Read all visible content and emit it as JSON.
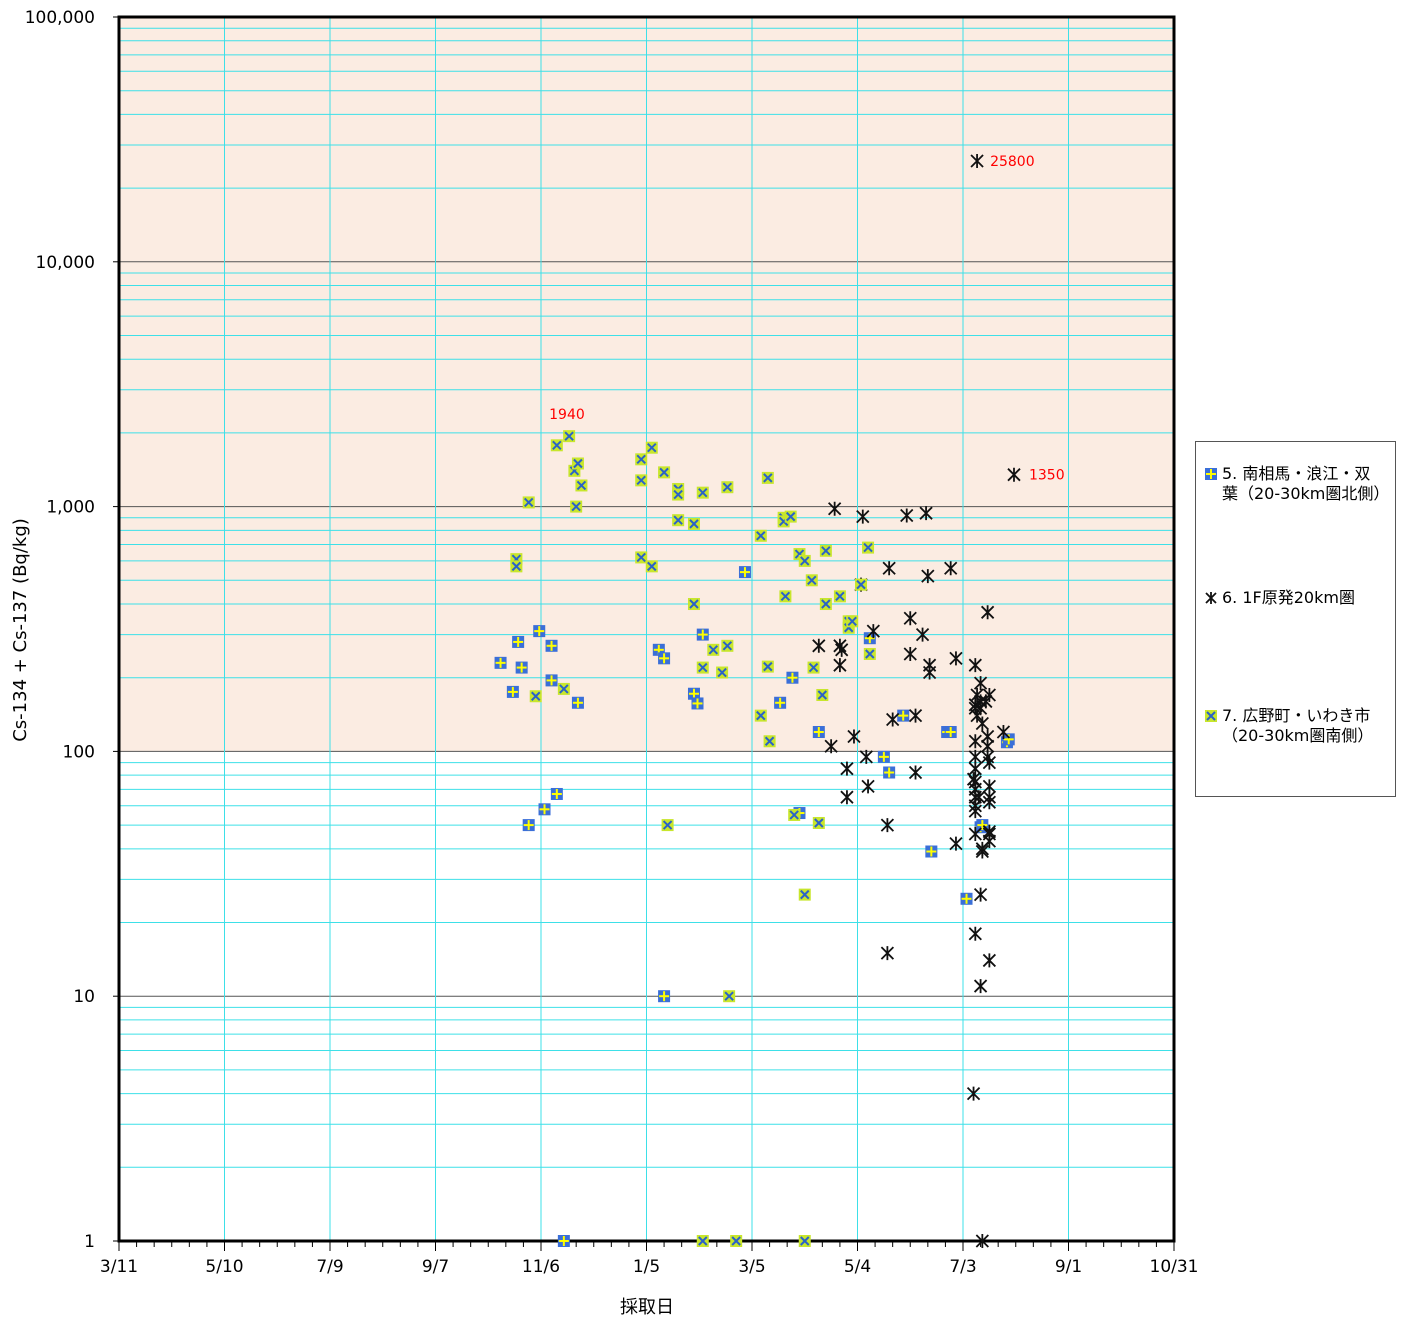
{
  "chart_data": {
    "type": "scatter",
    "xlabel": "採取日",
    "ylabel": "Cs-134 + Cs-137 (Bq/kg)",
    "y_scale": "log",
    "ylim": [
      1,
      100000
    ],
    "xlim": [
      "2011-03-11",
      "2012-10-31"
    ],
    "x_ticks": [
      "3/11",
      "5/10",
      "7/9",
      "9/7",
      "11/6",
      "1/5",
      "3/5",
      "5/4",
      "7/3",
      "9/1",
      "10/31"
    ],
    "y_ticks": [
      "1",
      "10",
      "100",
      "1,000",
      "10,000",
      "100,000"
    ],
    "shaded_region": {
      "from": 100,
      "to": 100000,
      "color": "#fbece2"
    },
    "grid": true,
    "legend_position": "right",
    "series": [
      {
        "name": "5. 南相馬・浪江・双葉（20-30km圏北側）",
        "marker": "square-plus",
        "color": "#3a6fd8",
        "accent": "#ffff00",
        "points": [
          [
            "2011-10-14",
            230
          ],
          [
            "2011-10-21",
            175
          ],
          [
            "2011-10-24",
            280
          ],
          [
            "2011-10-26",
            220
          ],
          [
            "2011-10-30",
            50
          ],
          [
            "2011-11-05",
            310
          ],
          [
            "2011-11-08",
            58
          ],
          [
            "2011-11-12",
            195
          ],
          [
            "2011-11-12",
            270
          ],
          [
            "2011-11-15",
            67
          ],
          [
            "2011-11-19",
            1
          ],
          [
            "2011-11-27",
            158
          ],
          [
            "2012-01-12",
            260
          ],
          [
            "2012-01-15",
            240
          ],
          [
            "2012-01-15",
            10
          ],
          [
            "2012-02-01",
            172
          ],
          [
            "2012-02-03",
            157
          ],
          [
            "2012-02-06",
            300
          ],
          [
            "2012-03-01",
            540
          ],
          [
            "2012-03-21",
            158
          ],
          [
            "2012-03-28",
            200
          ],
          [
            "2012-04-01",
            56
          ],
          [
            "2012-04-12",
            120
          ],
          [
            "2012-05-11",
            290
          ],
          [
            "2012-05-19",
            95
          ],
          [
            "2012-05-22",
            82
          ],
          [
            "2012-05-30",
            140
          ],
          [
            "2012-06-15",
            39
          ],
          [
            "2012-06-24",
            120
          ],
          [
            "2012-06-26",
            120
          ],
          [
            "2012-07-05",
            25
          ],
          [
            "2012-07-13",
            49
          ],
          [
            "2012-07-14",
            50
          ],
          [
            "2012-07-28",
            109
          ],
          [
            "2012-07-29",
            112
          ]
        ]
      },
      {
        "name": "6. 1F原発20km圏",
        "marker": "asterisk",
        "color": "#111111",
        "points": [
          [
            "2012-07-11",
            25800
          ],
          [
            "2012-08-01",
            1350
          ],
          [
            "2012-04-12",
            270
          ],
          [
            "2012-04-21",
            980
          ],
          [
            "2012-04-24",
            270
          ],
          [
            "2012-04-25",
            260
          ],
          [
            "2012-04-24",
            225
          ],
          [
            "2012-04-19",
            105
          ],
          [
            "2012-04-28",
            85
          ],
          [
            "2012-04-28",
            65
          ],
          [
            "2012-05-02",
            115
          ],
          [
            "2012-05-06",
            480
          ],
          [
            "2012-05-07",
            910
          ],
          [
            "2012-05-09",
            95
          ],
          [
            "2012-05-10",
            72
          ],
          [
            "2012-05-13",
            310
          ],
          [
            "2012-05-21",
            50
          ],
          [
            "2012-05-21",
            15
          ],
          [
            "2012-05-22",
            560
          ],
          [
            "2012-05-24",
            135
          ],
          [
            "2012-06-01",
            920
          ],
          [
            "2012-06-03",
            350
          ],
          [
            "2012-06-03",
            250
          ],
          [
            "2012-06-06",
            140
          ],
          [
            "2012-06-06",
            82
          ],
          [
            "2012-06-10",
            300
          ],
          [
            "2012-06-12",
            940
          ],
          [
            "2012-06-13",
            520
          ],
          [
            "2012-06-14",
            225
          ],
          [
            "2012-06-14",
            210
          ],
          [
            "2012-06-26",
            560
          ],
          [
            "2012-06-29",
            240
          ],
          [
            "2012-06-29",
            42
          ],
          [
            "2012-07-09",
            77
          ],
          [
            "2012-07-10",
            225
          ],
          [
            "2012-07-11",
            170
          ],
          [
            "2012-07-10",
            155
          ],
          [
            "2012-07-10",
            150
          ],
          [
            "2012-07-11",
            140
          ],
          [
            "2012-07-10",
            110
          ],
          [
            "2012-07-10",
            95
          ],
          [
            "2012-07-10",
            85
          ],
          [
            "2012-07-10",
            75
          ],
          [
            "2012-07-10",
            70
          ],
          [
            "2012-07-10",
            65
          ],
          [
            "2012-07-10",
            60
          ],
          [
            "2012-07-10",
            57
          ],
          [
            "2012-07-10",
            46
          ],
          [
            "2012-07-10",
            18
          ],
          [
            "2012-07-09",
            4
          ],
          [
            "2012-07-12",
            65
          ],
          [
            "2012-07-13",
            190
          ],
          [
            "2012-07-13",
            160
          ],
          [
            "2012-07-13",
            150
          ],
          [
            "2012-07-14",
            130
          ],
          [
            "2012-07-14",
            40
          ],
          [
            "2012-07-14",
            39
          ],
          [
            "2012-07-13",
            26
          ],
          [
            "2012-07-13",
            11
          ],
          [
            "2012-07-14",
            1
          ],
          [
            "2012-07-17",
            370
          ],
          [
            "2012-07-18",
            170
          ],
          [
            "2012-07-16",
            160
          ],
          [
            "2012-07-17",
            115
          ],
          [
            "2012-07-17",
            105
          ],
          [
            "2012-07-17",
            95
          ],
          [
            "2012-07-18",
            90
          ],
          [
            "2012-07-18",
            72
          ],
          [
            "2012-07-18",
            65
          ],
          [
            "2012-07-18",
            62
          ],
          [
            "2012-07-18",
            47
          ],
          [
            "2012-07-18",
            46
          ],
          [
            "2012-07-18",
            43
          ],
          [
            "2012-07-18",
            14
          ],
          [
            "2012-07-26",
            120
          ]
        ]
      },
      {
        "name": "7. 広野町・いわき市（20-30km圏南側）",
        "marker": "square-x",
        "color": "#c8e62c",
        "accent": "#2a62c8",
        "points": [
          [
            "2011-10-23",
            610
          ],
          [
            "2011-10-23",
            570
          ],
          [
            "2011-10-30",
            1040
          ],
          [
            "2011-11-03",
            168
          ],
          [
            "2011-11-15",
            1780
          ],
          [
            "2011-11-19",
            180
          ],
          [
            "2011-11-22",
            1940
          ],
          [
            "2011-11-25",
            1400
          ],
          [
            "2011-11-27",
            1500
          ],
          [
            "2011-11-26",
            1000
          ],
          [
            "2011-11-29",
            1220
          ],
          [
            "2012-01-02",
            1560
          ],
          [
            "2012-01-02",
            1280
          ],
          [
            "2012-01-02",
            620
          ],
          [
            "2012-01-08",
            1740
          ],
          [
            "2012-01-08",
            570
          ],
          [
            "2012-01-15",
            1380
          ],
          [
            "2012-01-17",
            50
          ],
          [
            "2012-01-23",
            1180
          ],
          [
            "2012-01-23",
            1120
          ],
          [
            "2012-01-23",
            880
          ],
          [
            "2012-02-01",
            850
          ],
          [
            "2012-02-01",
            400
          ],
          [
            "2012-02-06",
            220
          ],
          [
            "2012-02-06",
            1140
          ],
          [
            "2012-02-06",
            1
          ],
          [
            "2012-02-12",
            260
          ],
          [
            "2012-02-17",
            210
          ],
          [
            "2012-02-20",
            1200
          ],
          [
            "2012-02-20",
            270
          ],
          [
            "2012-02-21",
            10
          ],
          [
            "2012-02-25",
            1
          ],
          [
            "2012-03-10",
            760
          ],
          [
            "2012-03-10",
            140
          ],
          [
            "2012-03-14",
            1310
          ],
          [
            "2012-03-14",
            222
          ],
          [
            "2012-03-15",
            110
          ],
          [
            "2012-03-23",
            900
          ],
          [
            "2012-03-24",
            430
          ],
          [
            "2012-03-23",
            870
          ],
          [
            "2012-03-27",
            910
          ],
          [
            "2012-03-29",
            55
          ],
          [
            "2012-04-01",
            640
          ],
          [
            "2012-04-04",
            600
          ],
          [
            "2012-04-08",
            500
          ],
          [
            "2012-04-04",
            26
          ],
          [
            "2012-04-04",
            1
          ],
          [
            "2012-04-09",
            220
          ],
          [
            "2012-04-14",
            170
          ],
          [
            "2012-04-16",
            660
          ],
          [
            "2012-04-16",
            400
          ],
          [
            "2012-04-12",
            51
          ],
          [
            "2012-04-24",
            430
          ],
          [
            "2012-04-29",
            340
          ],
          [
            "2012-04-29",
            320
          ],
          [
            "2012-05-01",
            340
          ],
          [
            "2012-05-06",
            480
          ],
          [
            "2012-05-10",
            680
          ],
          [
            "2012-05-11",
            250
          ]
        ]
      }
    ],
    "annotations": [
      {
        "text": "25800",
        "x": "2012-07-11",
        "y": 25800
      },
      {
        "text": "1940",
        "x": "2011-11-22",
        "y": 1940
      },
      {
        "text": "1350",
        "x": "2012-08-01",
        "y": 1350
      }
    ]
  }
}
